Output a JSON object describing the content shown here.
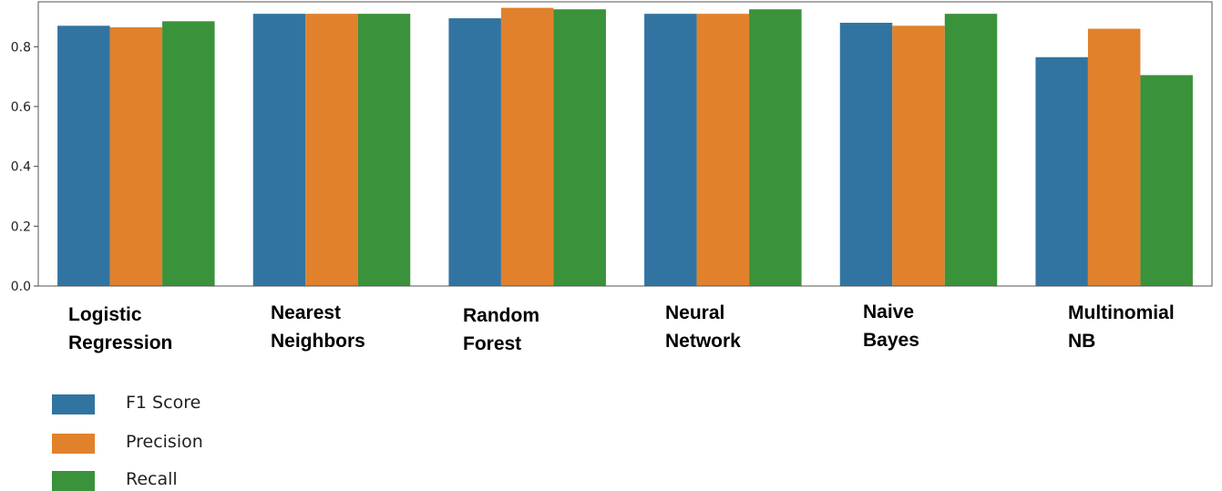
{
  "chart_data": {
    "type": "bar",
    "categories": [
      [
        "Logistic",
        "Regression"
      ],
      [
        "Nearest",
        "Neighbors"
      ],
      [
        "Random",
        "Forest"
      ],
      [
        "Neural",
        "Network"
      ],
      [
        "Naive",
        "Bayes"
      ],
      [
        "Multinomial",
        "NB"
      ]
    ],
    "series": [
      {
        "name": "F1 Score",
        "color": "#3274a1",
        "values": [
          0.87,
          0.91,
          0.895,
          0.91,
          0.88,
          0.765
        ]
      },
      {
        "name": "Precision",
        "color": "#e1812c",
        "values": [
          0.865,
          0.91,
          0.93,
          0.91,
          0.87,
          0.86
        ]
      },
      {
        "name": "Recall",
        "color": "#3a923a",
        "values": [
          0.885,
          0.91,
          0.925,
          0.925,
          0.91,
          0.705
        ]
      }
    ],
    "yticks": [
      "0.0",
      "0.2",
      "0.4",
      "0.6",
      "0.8"
    ],
    "ylim": [
      0,
      0.95
    ],
    "grid": false,
    "legend_position": "bottom-left"
  }
}
